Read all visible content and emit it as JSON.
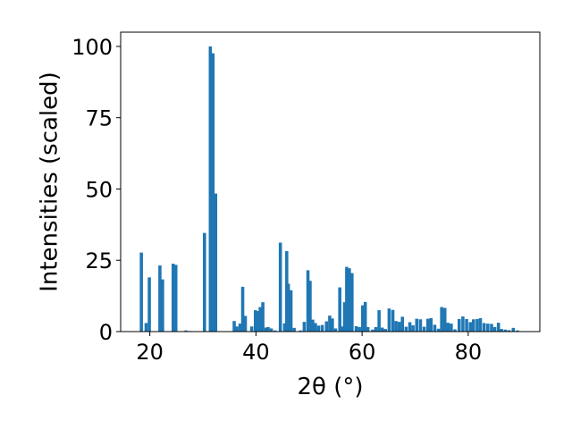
{
  "chart_data": {
    "type": "bar",
    "title": "",
    "xlabel": "2θ (°)",
    "ylabel": "Intensities (scaled)",
    "xlim": [
      14.5,
      93.5
    ],
    "ylim": [
      0,
      105
    ],
    "xticks": [
      20,
      40,
      60,
      80
    ],
    "yticks": [
      0,
      25,
      50,
      75,
      100
    ],
    "grid": false,
    "bar_color": "#1f77b4",
    "bar_width": 0.6,
    "x": [
      18.4,
      19.3,
      19.9,
      21.9,
      22.4,
      24.4,
      24.9,
      26.8,
      27.6,
      30.3,
      31.4,
      31.9,
      32.4,
      35.9,
      36.4,
      37.0,
      37.5,
      38.0,
      39.2,
      39.9,
      40.4,
      40.8,
      41.3,
      41.9,
      42.3,
      42.9,
      43.6,
      44.6,
      45.4,
      45.8,
      46.1,
      46.6,
      47.2,
      48.4,
      49.1,
      49.8,
      50.2,
      50.7,
      51.2,
      51.8,
      52.5,
      53.3,
      53.9,
      54.4,
      55.0,
      55.8,
      56.3,
      56.7,
      57.1,
      57.6,
      58.1,
      58.9,
      59.5,
      60.1,
      60.6,
      61.1,
      62.0,
      62.6,
      63.2,
      63.8,
      64.4,
      65.1,
      65.8,
      66.4,
      67.0,
      67.6,
      68.3,
      69.0,
      69.6,
      70.3,
      71.0,
      71.7,
      72.4,
      73.0,
      73.7,
      74.4,
      75.0,
      75.6,
      76.2,
      76.8,
      77.5,
      78.3,
      79.0,
      79.7,
      80.4,
      81.0,
      81.7,
      82.3,
      83.0,
      83.7,
      84.4,
      85.0,
      85.7,
      86.3,
      87.0,
      87.7,
      88.5,
      89.3
    ],
    "values": [
      27.7,
      3.0,
      19.0,
      23.2,
      18.3,
      23.8,
      23.4,
      0.4,
      0.2,
      34.6,
      100.0,
      97.6,
      48.4,
      3.7,
      1.8,
      2.8,
      15.7,
      5.5,
      1.8,
      7.5,
      7.2,
      8.6,
      10.3,
      1.4,
      1.6,
      1.1,
      0.4,
      31.2,
      2.9,
      28.2,
      16.8,
      14.5,
      1.3,
      0.4,
      3.4,
      21.5,
      17.8,
      4.2,
      3.0,
      2.1,
      2.3,
      3.6,
      5.6,
      4.6,
      1.1,
      15.5,
      1.8,
      10.3,
      22.7,
      22.2,
      20.5,
      1.9,
      1.6,
      9.2,
      10.4,
      1.6,
      0.7,
      1.6,
      7.5,
      1.4,
      0.9,
      8.1,
      7.6,
      3.7,
      3.4,
      5.2,
      1.7,
      3.3,
      2.2,
      4.5,
      4.3,
      1.7,
      4.5,
      4.7,
      2.4,
      1.0,
      8.6,
      8.3,
      3.1,
      2.8,
      0.8,
      4.4,
      5.3,
      4.4,
      3.3,
      4.3,
      4.4,
      4.7,
      3.0,
      2.8,
      2.7,
      1.6,
      3.1,
      0.9,
      0.7,
      0.5,
      1.3,
      0.4
    ]
  }
}
